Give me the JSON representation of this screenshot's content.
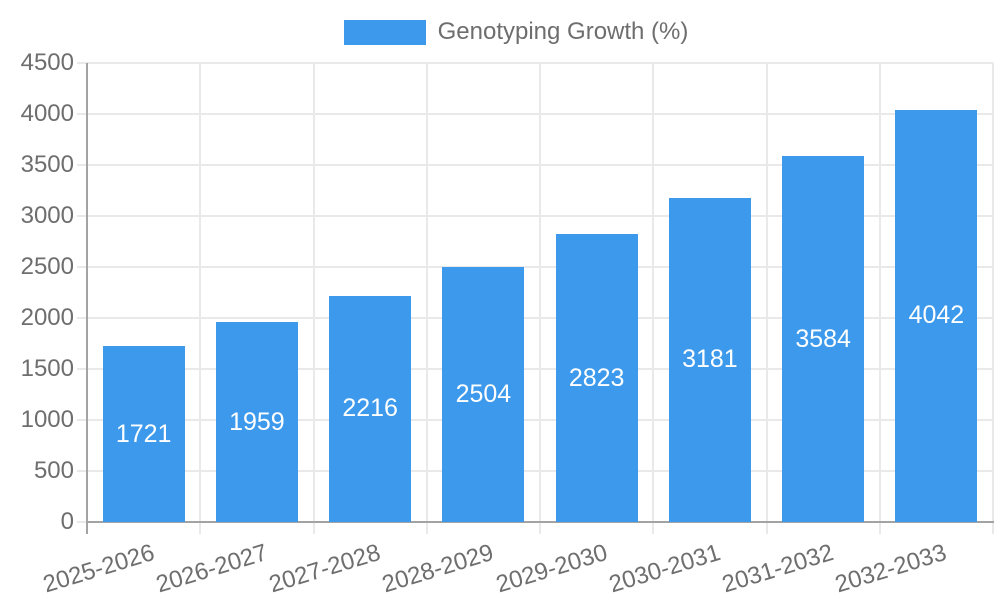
{
  "chart_data": {
    "type": "bar",
    "title": "",
    "categories": [
      "2025-2026",
      "2026-2027",
      "2027-2028",
      "2028-2029",
      "2029-2030",
      "2030-2031",
      "2031-2032",
      "2032-2033"
    ],
    "series": [
      {
        "name": "Genotyping Growth (%)",
        "values": [
          1721,
          1959,
          2216,
          2504,
          2823,
          3181,
          3584,
          4042
        ]
      }
    ],
    "value_labels": {
      "visible": true,
      "position": "inside-center",
      "color": "#ffffff"
    },
    "legend": {
      "position": "top-center",
      "entries": [
        "Genotyping Growth (%)"
      ]
    },
    "xlabel": "",
    "ylabel": "",
    "ylim": [
      0,
      4500
    ],
    "yticks": [
      0,
      500,
      1000,
      1500,
      2000,
      2500,
      3000,
      3500,
      4000,
      4500
    ],
    "grid": true,
    "x_tick_rotation_deg": -17,
    "colors": {
      "bar": "#3c99ec",
      "grid": "#e9e9e9",
      "axis": "#a3a3a3",
      "tick_text": "#6e6e6e",
      "bar_label_text": "#ffffff"
    }
  }
}
